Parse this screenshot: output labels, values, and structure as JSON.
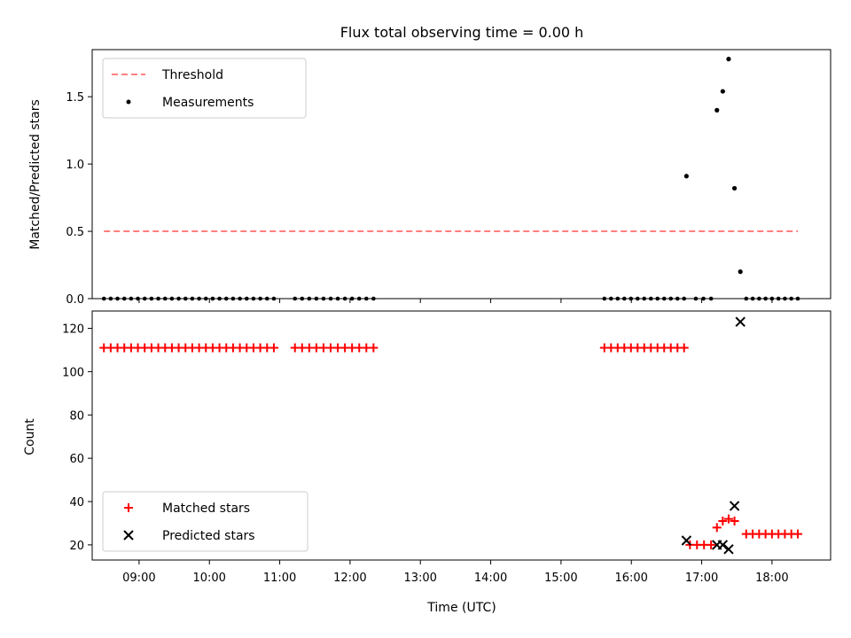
{
  "chart_data": [
    {
      "type": "scatter",
      "title": "Flux total observing time = 0.00 h",
      "xlabel": "",
      "ylabel": "Matched/Predicted stars",
      "xlim": [
        "08:20",
        "18:50"
      ],
      "ylim": [
        0,
        1.85
      ],
      "yticks": [
        "0.0",
        "0.5",
        "1.0",
        "1.5"
      ],
      "legend_position": "upper-left",
      "legend": [
        "Threshold",
        "Measurements"
      ],
      "threshold": {
        "name": "Threshold",
        "value": 0.5,
        "x_start": "08:30",
        "x_end": "18:22",
        "color": "#ff7f7f"
      },
      "measurements": {
        "name": "Measurements",
        "color": "#000000",
        "zero_segments": [
          {
            "start": "08:30",
            "end": "10:55",
            "count": 26
          },
          {
            "start": "11:13",
            "end": "12:20",
            "count": 12
          },
          {
            "start": "15:37",
            "end": "16:45",
            "count": 13
          },
          {
            "start": "16:55",
            "end": "17:08",
            "count": 3
          },
          {
            "start": "17:38",
            "end": "18:22",
            "count": 9
          }
        ],
        "points": [
          {
            "x": "16:47",
            "y": 0.91
          },
          {
            "x": "17:13",
            "y": 1.4
          },
          {
            "x": "17:18",
            "y": 1.54
          },
          {
            "x": "17:23",
            "y": 1.78
          },
          {
            "x": "17:28",
            "y": 0.82
          },
          {
            "x": "17:33",
            "y": 0.2
          }
        ]
      }
    },
    {
      "type": "scatter",
      "title": "",
      "xlabel": "Time (UTC)",
      "ylabel": "Count",
      "xlim": [
        "08:20",
        "18:50"
      ],
      "ylim": [
        13,
        128
      ],
      "xticks": [
        "09:00",
        "10:00",
        "11:00",
        "12:00",
        "13:00",
        "14:00",
        "15:00",
        "16:00",
        "17:00",
        "18:00"
      ],
      "yticks": [
        "20",
        "40",
        "60",
        "80",
        "100",
        "120"
      ],
      "legend_position": "lower-left",
      "legend": [
        "Matched stars",
        "Predicted stars"
      ],
      "matched": {
        "name": "Matched stars",
        "color": "#ff0000",
        "segments": [
          {
            "start": "08:30",
            "end": "10:55",
            "y": 111,
            "count": 26
          },
          {
            "start": "11:13",
            "end": "12:20",
            "y": 111,
            "count": 12
          },
          {
            "start": "15:37",
            "end": "16:45",
            "y": 111,
            "count": 13
          },
          {
            "start": "16:50",
            "end": "17:08",
            "y": 20,
            "count": 4
          },
          {
            "start": "17:38",
            "end": "18:22",
            "y": 25,
            "count": 9
          }
        ],
        "points": [
          {
            "x": "17:13",
            "y": 28
          },
          {
            "x": "17:18",
            "y": 31
          },
          {
            "x": "17:23",
            "y": 32
          },
          {
            "x": "17:28",
            "y": 31
          }
        ]
      },
      "predicted": {
        "name": "Predicted stars",
        "color": "#000000",
        "points": [
          {
            "x": "16:47",
            "y": 22
          },
          {
            "x": "17:13",
            "y": 20
          },
          {
            "x": "17:18",
            "y": 20
          },
          {
            "x": "17:23",
            "y": 18
          },
          {
            "x": "17:28",
            "y": 38
          },
          {
            "x": "17:33",
            "y": 123
          }
        ]
      }
    }
  ]
}
